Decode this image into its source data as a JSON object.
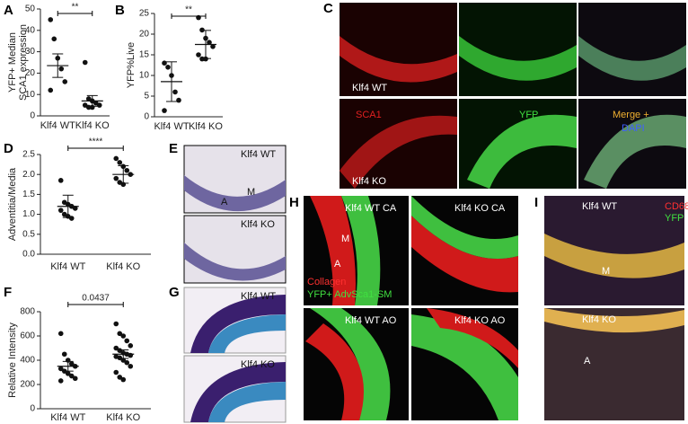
{
  "chart_data": [
    {
      "type": "strip",
      "panel": "A",
      "ylabel": [
        "YFP+ Median",
        "SCA1 expression"
      ],
      "categories": [
        "Klf4 WT",
        "Klf4 KO"
      ],
      "points": [
        [
          45,
          36,
          27,
          22,
          16,
          12
        ],
        [
          25,
          8,
          7,
          6,
          5,
          5,
          4,
          4
        ]
      ],
      "means": [
        23.5,
        7
      ],
      "errors": [
        5.5,
        2.5
      ],
      "color": "#111",
      "ylim": [
        0,
        50
      ],
      "yticks": [
        0,
        10,
        20,
        30,
        40,
        50
      ],
      "significance": "**"
    },
    {
      "type": "strip",
      "panel": "B",
      "ylabel": [
        "YFP%Live"
      ],
      "categories": [
        "Klf4 WT",
        "Klf4 KO"
      ],
      "points": [
        [
          13,
          12,
          10,
          6,
          4,
          1.5
        ],
        [
          24,
          21,
          19,
          18,
          17,
          15,
          14,
          14
        ]
      ],
      "means": [
        8.5,
        17.5
      ],
      "errors": [
        4.8,
        3.4
      ],
      "color": "#111",
      "ylim": [
        0,
        25
      ],
      "yticks": [
        0,
        5,
        10,
        15,
        20,
        25
      ],
      "significance": "**"
    },
    {
      "type": "strip",
      "panel": "D",
      "ylabel": [
        "Adventitia/Media"
      ],
      "categories": [
        "Klf4 WT",
        "Klf4 KO"
      ],
      "points": [
        [
          1.85,
          1.3,
          1.25,
          1.2,
          1.15,
          1.1,
          1.0,
          0.95,
          0.9
        ],
        [
          2.4,
          2.3,
          2.2,
          2.1,
          2.0,
          1.9,
          1.8,
          1.75
        ]
      ],
      "means": [
        1.2,
        2.0
      ],
      "errors": [
        0.28,
        0.22
      ],
      "color": "#111",
      "ylim": [
        0,
        2.5
      ],
      "yticks": [
        {
          "value": 0,
          "label": "0.0"
        },
        0.5,
        {
          "value": 1,
          "label": "1.0"
        },
        1.5,
        {
          "value": 2,
          "label": "2.0"
        },
        2.5
      ],
      "significance": "****"
    },
    {
      "type": "strip",
      "panel": "F",
      "ylabel": [
        "Relative Intensity"
      ],
      "categories": [
        "Klf4 WT",
        "Klf4 KO"
      ],
      "points": [
        [
          620,
          450,
          400,
          370,
          350,
          330,
          310,
          290,
          270,
          250,
          230
        ],
        [
          700,
          620,
          600,
          560,
          520,
          500,
          480,
          460,
          450,
          440,
          430,
          420,
          400,
          380,
          350,
          300,
          260,
          240
        ]
      ],
      "means": [
        350,
        450
      ],
      "errors": [
        40,
        35
      ],
      "color": "#111",
      "ylim": [
        0,
        800
      ],
      "yticks": [
        0,
        200,
        400,
        600,
        800
      ],
      "significance": "0.0437"
    }
  ],
  "image_panels": {
    "C": {
      "panel": "C",
      "labels": [
        "Klf4 WT",
        "Klf4 KO",
        "SCA1",
        "YFP",
        "Merge +",
        "DAPI"
      ]
    },
    "E": {
      "panel": "E",
      "labels": [
        "Klf4 WT",
        "Klf4 KO",
        "M",
        "A"
      ]
    },
    "G": {
      "panel": "G",
      "labels": [
        "Klf4 WT",
        "Klf4 KO"
      ]
    },
    "H": {
      "panel": "H",
      "labels": [
        "Klf4 WT CA",
        "Klf4 KO CA",
        "Klf4 WT AO",
        "Klf4 KO AO",
        "M",
        "A",
        "Collagen",
        "YFP+ AdvSca1-SM"
      ]
    },
    "I": {
      "panel": "I",
      "labels": [
        "Klf4 WT",
        "Klf4 KO",
        "CD68",
        "YFP",
        "M",
        "A"
      ]
    }
  }
}
